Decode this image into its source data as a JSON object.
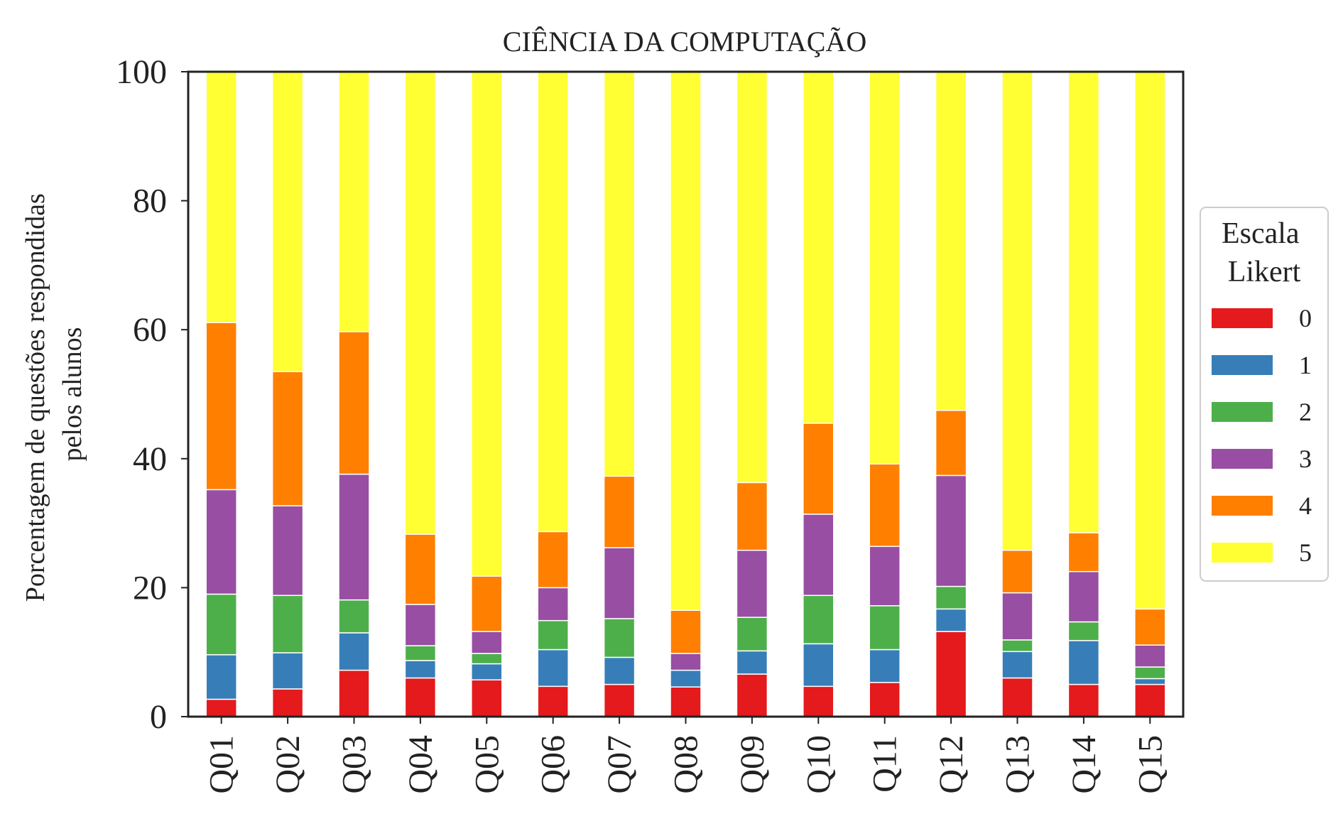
{
  "chart_data": {
    "type": "bar",
    "stacked": true,
    "title": "CIÊNCIA DA COMPUTAÇÃO",
    "xlabel": "",
    "ylabel_lines": [
      "Porcentagem de questões respondidas",
      "pelos alunos"
    ],
    "ylim": [
      0,
      100
    ],
    "yticks": [
      0,
      20,
      40,
      60,
      80,
      100
    ],
    "grid": false,
    "categories": [
      "Q01",
      "Q02",
      "Q03",
      "Q04",
      "Q05",
      "Q06",
      "Q07",
      "Q08",
      "Q09",
      "Q10",
      "Q11",
      "Q12",
      "Q13",
      "Q14",
      "Q15"
    ],
    "legend": {
      "title_lines": [
        "Escala",
        "Likert"
      ],
      "placement": "center-right"
    },
    "series": [
      {
        "name": "0",
        "color": "#e41a1c",
        "values": [
          2.7,
          4.3,
          7.2,
          6.0,
          5.7,
          4.7,
          5.0,
          4.6,
          6.6,
          4.7,
          5.3,
          13.2,
          6.0,
          5.0,
          5.0
        ]
      },
      {
        "name": "1",
        "color": "#377eb8",
        "values": [
          6.9,
          5.6,
          5.8,
          2.7,
          2.5,
          5.7,
          4.2,
          2.6,
          3.6,
          6.6,
          5.1,
          3.5,
          4.1,
          6.8,
          0.9
        ]
      },
      {
        "name": "2",
        "color": "#4daf4a",
        "values": [
          9.4,
          8.9,
          5.1,
          2.3,
          1.6,
          4.5,
          6.0,
          0.0,
          5.2,
          7.5,
          6.8,
          3.5,
          1.8,
          2.9,
          1.8
        ]
      },
      {
        "name": "3",
        "color": "#984ea3",
        "values": [
          16.2,
          13.9,
          19.5,
          6.4,
          3.4,
          5.1,
          11.0,
          2.6,
          10.4,
          12.6,
          9.2,
          17.2,
          7.3,
          7.8,
          3.4
        ]
      },
      {
        "name": "4",
        "color": "#ff7f00",
        "values": [
          25.9,
          20.8,
          22.1,
          10.9,
          8.6,
          8.7,
          11.1,
          6.7,
          10.5,
          14.1,
          12.8,
          10.1,
          6.6,
          6.0,
          5.6
        ]
      },
      {
        "name": "5",
        "color": "#ffff33",
        "values": [
          38.9,
          46.5,
          40.3,
          71.7,
          78.2,
          71.3,
          62.7,
          83.5,
          63.7,
          54.5,
          60.8,
          52.5,
          74.2,
          71.5,
          83.3
        ]
      }
    ]
  }
}
